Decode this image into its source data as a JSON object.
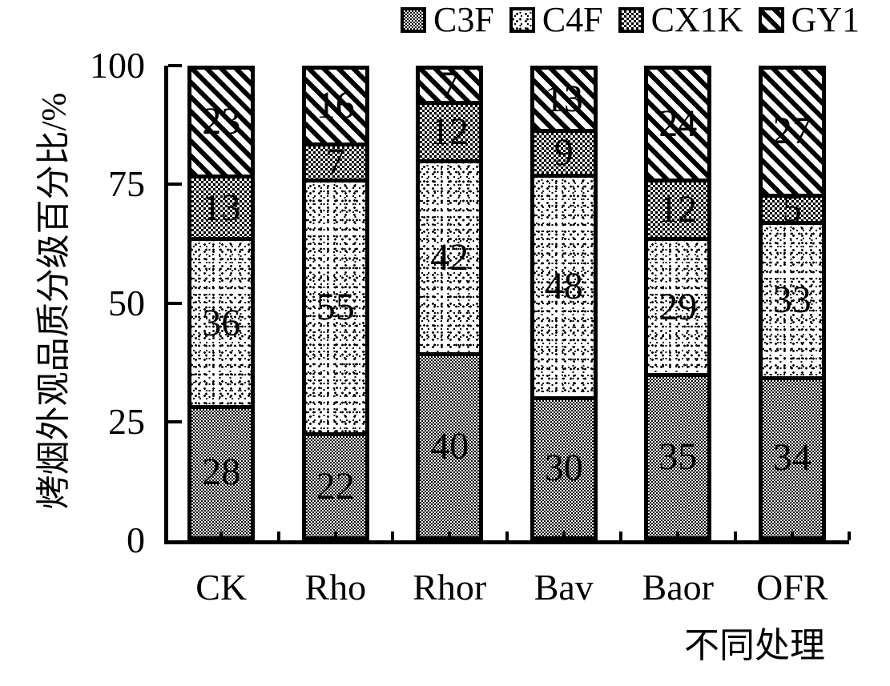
{
  "chart_data": {
    "type": "bar",
    "stacked": true,
    "title": "",
    "xlabel": "不同处理",
    "ylabel": "烤烟外观品质分级百分比/%",
    "categories": [
      "CK",
      "Rho",
      "Rhor",
      "Bav",
      "Baor",
      "OFR"
    ],
    "series": [
      {
        "name": "C3F",
        "pattern": "checker-fine",
        "values": [
          28,
          22,
          40,
          30,
          35,
          34
        ]
      },
      {
        "name": "C4F",
        "pattern": "stipple",
        "values": [
          36,
          55,
          42,
          48,
          29,
          33
        ]
      },
      {
        "name": "CX1K",
        "pattern": "checker-coarse",
        "values": [
          13,
          7,
          12,
          9,
          12,
          5
        ]
      },
      {
        "name": "GY1",
        "pattern": "diagonal-hatch",
        "values": [
          23,
          16,
          7,
          13,
          24,
          27
        ]
      }
    ],
    "yticks": [
      0,
      25,
      50,
      75,
      100
    ],
    "ylim": [
      0,
      100
    ],
    "legend_position": "top-right",
    "grid": false,
    "bar_value_labels": true,
    "colors": {
      "ink": "#000000",
      "background": "#ffffff"
    }
  }
}
